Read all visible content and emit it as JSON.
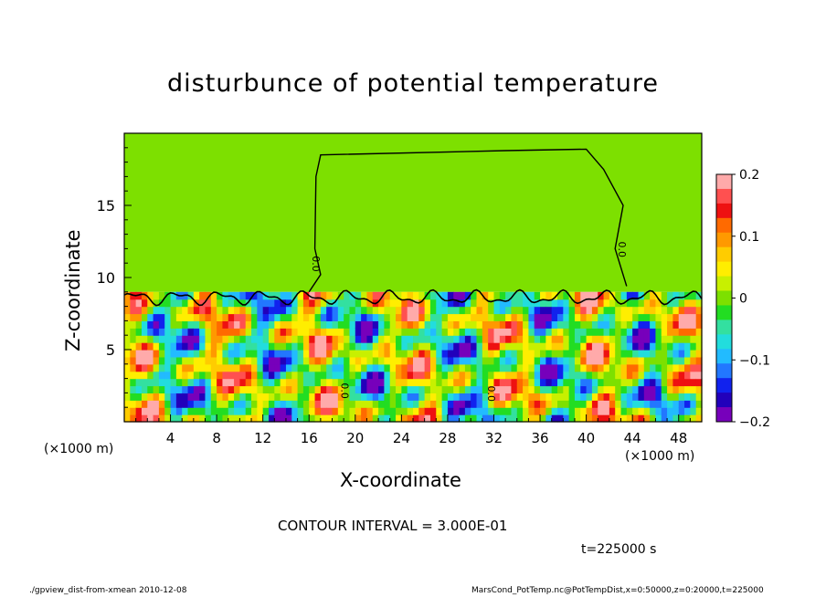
{
  "chart_data": {
    "type": "heatmap",
    "title": "disturbunce of potential temperature",
    "xlabel": "X-coordinate",
    "ylabel": "Z-coordinate",
    "x_unit_left": "(×1000 m)",
    "x_unit_right": "(×1000 m)",
    "xlim": [
      0,
      50
    ],
    "ylim": [
      0,
      20
    ],
    "x_ticks": [
      4,
      8,
      12,
      16,
      20,
      24,
      28,
      32,
      36,
      40,
      44,
      48
    ],
    "y_ticks": [
      5,
      10,
      15
    ],
    "colorbar": {
      "ticks": [
        0.2,
        0.1,
        0,
        -0.1,
        -0.2
      ],
      "tick_labels": [
        "0.2",
        "0.1",
        "0",
        "−0.1",
        "−0.2"
      ],
      "range": [
        -0.2,
        0.2
      ],
      "colors": [
        "#ffaaaa",
        "#ff5050",
        "#ee1111",
        "#ff6a00",
        "#ff9900",
        "#ffcc00",
        "#ffee00",
        "#c8f000",
        "#7de000",
        "#22dd22",
        "#33e0a0",
        "#22dddd",
        "#22bbff",
        "#2277ff",
        "#1122ee",
        "#2200bb",
        "#7700bb"
      ]
    },
    "contour_interval": "CONTOUR INTERVAL = 3.000E-01",
    "contour_labels": [
      "0.0",
      "0.0",
      "0.0",
      "0.0"
    ],
    "upper_layer": {
      "z_range": [
        9,
        20
      ],
      "value": 0
    },
    "lower_layer": {
      "z_range": [
        0,
        9
      ],
      "value_range": [
        -0.2,
        0.2
      ]
    },
    "time_label": "t=225000 s"
  },
  "footer": {
    "left": "./gpview_dist-from-xmean   2010-12-08",
    "right": "MarsCond_PotTemp.nc@PotTempDist,x=0:50000,z=0:20000,t=225000"
  },
  "colors": {
    "field_zero": "#22dd22",
    "background": "#ffffff"
  }
}
